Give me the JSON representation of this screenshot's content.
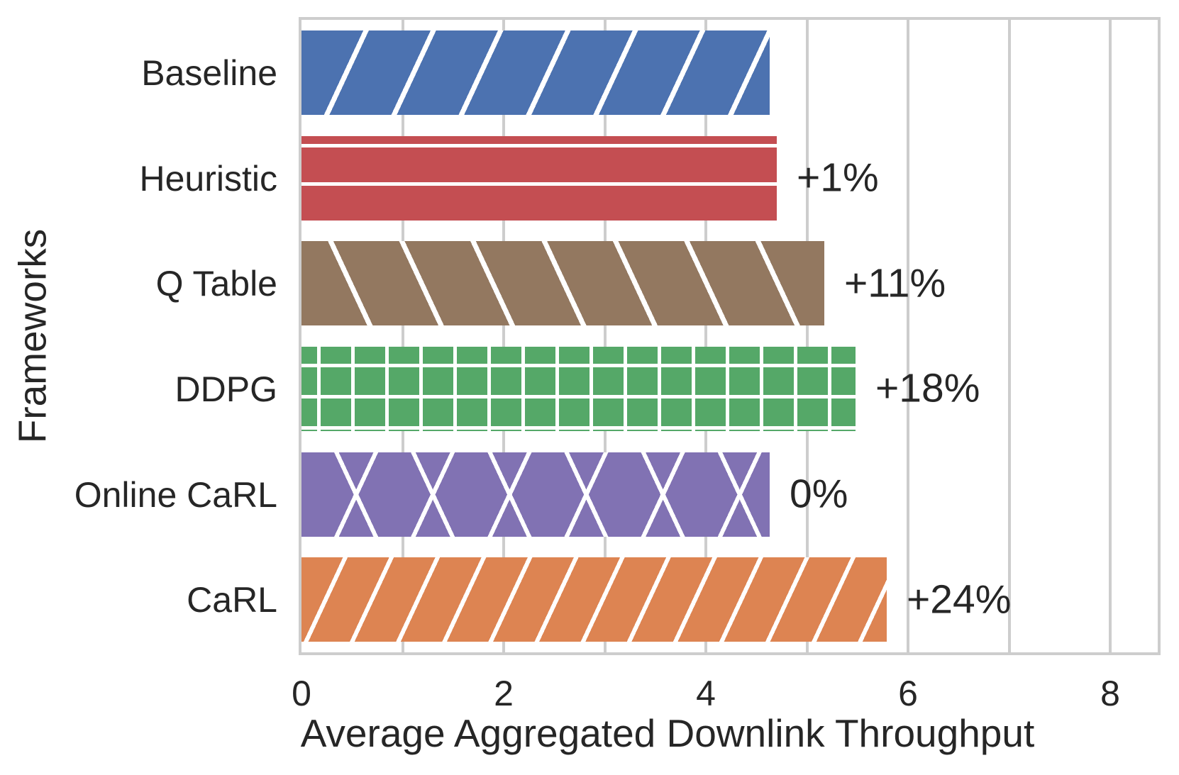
{
  "chart_data": {
    "type": "bar",
    "orientation": "horizontal",
    "xlabel": "Average Aggregated Downlink Throughput",
    "ylabel": "Frameworks",
    "categories": [
      "Baseline",
      "Heuristic",
      "Q Table",
      "DDPG",
      "Online CaRL",
      "CaRL"
    ],
    "values": [
      4.63,
      4.7,
      5.17,
      5.48,
      4.63,
      5.79
    ],
    "annotations": [
      "",
      "+1%",
      "+11%",
      "+18%",
      "0%",
      "+24%"
    ],
    "bar_colors": [
      "#4C72B0",
      "#C44E52",
      "#937860",
      "#55A868",
      "#8172B3",
      "#DD8452"
    ],
    "hatches": [
      "/",
      "-",
      "\\",
      "+",
      "x",
      "//"
    ],
    "hatch_color": "#ffffff",
    "xlim": [
      0,
      8.47
    ],
    "xticks": [
      "0",
      "2",
      "4",
      "6",
      "8"
    ],
    "gridline_values": [
      1,
      2,
      3,
      4,
      5,
      6,
      7,
      8
    ],
    "grid_color": "#cdcdcd",
    "text_color": "#262626",
    "bar_fraction": 0.8,
    "legend": "none",
    "grid": "on"
  }
}
